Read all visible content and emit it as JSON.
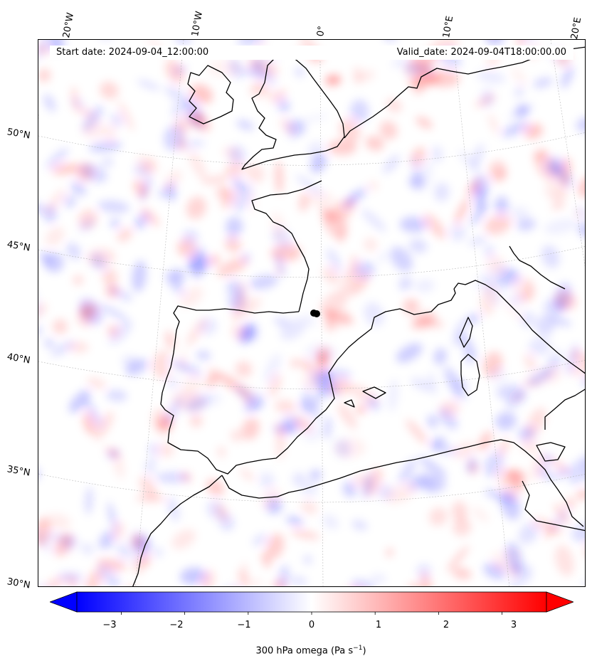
{
  "header": {
    "start_date": "Start date: 2024-09-04_12:00:00",
    "valid_date": "Valid_date: 2024-09-04T18:00:00.00"
  },
  "longitude_labels": [
    "20°W",
    "10°W",
    "0°",
    "10°E",
    "20°E"
  ],
  "latitude_labels": [
    "50°N",
    "45°N",
    "40°N",
    "35°N",
    "30°N"
  ],
  "colorbar": {
    "ticks": [
      "−3",
      "−2",
      "−1",
      "0",
      "1",
      "2",
      "3"
    ],
    "label_main": "300 hPa omega (Pa s",
    "label_exp": "−1",
    "label_close": ")",
    "range": [
      -3.7,
      3.7
    ],
    "cmap": "bwr",
    "colors": {
      "negative": "#0000ff",
      "zero": "#ffffff",
      "positive": "#ff0000"
    }
  },
  "map": {
    "field": "300 hPa omega",
    "projection": "conic",
    "coastline_color": "#000000",
    "gridline_color": "#bbbbbb",
    "marker_color": "#000000"
  }
}
